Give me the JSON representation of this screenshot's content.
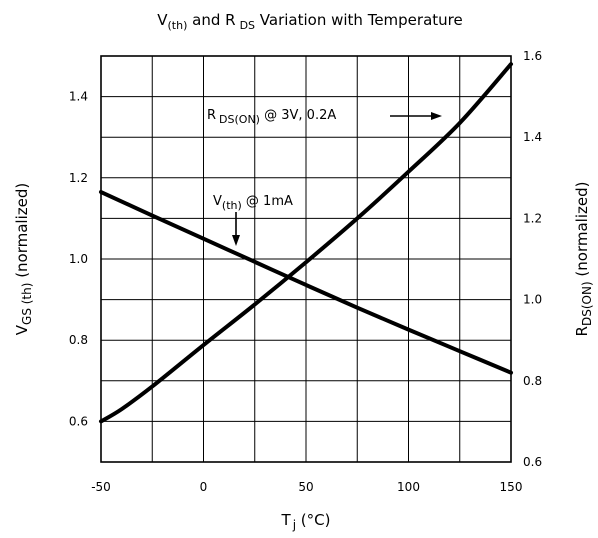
{
  "chart_data": {
    "type": "line",
    "title": {
      "pre": "V",
      "sub1": "(th)",
      "mid": " and R",
      "sub2": "DS",
      "post": "  Variation with Temperature"
    },
    "xlabel": {
      "main": "T",
      "sub": "j",
      "unit": " (°C)"
    },
    "ylabel_left": {
      "main": "V",
      "sub": "GS (th)",
      "post": " (normalized)"
    },
    "ylabel_right": {
      "main": "R",
      "sub": "DS(ON)",
      "post": " (normalized)"
    },
    "xlim": [
      -50,
      150
    ],
    "ylim_left": [
      0.5,
      1.5
    ],
    "ylim_right": [
      0.6,
      1.6
    ],
    "x_ticks": [
      -50,
      0,
      50,
      100,
      150
    ],
    "x_tick_labels": [
      "-50",
      "0",
      "50",
      "100",
      "150"
    ],
    "y_left_ticks": [
      0.6,
      0.8,
      1.0,
      1.2,
      1.4
    ],
    "y_left_tick_labels": [
      "0.6",
      "0.8",
      "1.0",
      "1.2",
      "1.4"
    ],
    "y_right_ticks": [
      0.6,
      0.8,
      1.0,
      1.2,
      1.4,
      1.6
    ],
    "y_right_tick_labels": [
      "0.6",
      "0.8",
      "1.0",
      "1.2",
      "1.4",
      "1.6"
    ],
    "grid": true,
    "series": [
      {
        "axis": "left",
        "x": [
          -50,
          -25,
          0,
          25,
          50,
          75,
          100,
          125,
          150
        ],
        "y": [
          1.165,
          1.107,
          1.05,
          0.993,
          0.936,
          0.88,
          0.826,
          0.773,
          0.72
        ]
      },
      {
        "axis": "right",
        "x": [
          -50,
          -40,
          -25,
          0,
          25,
          50,
          75,
          100,
          125,
          150
        ],
        "y": [
          0.7,
          0.73,
          0.786,
          0.888,
          0.988,
          1.092,
          1.2,
          1.315,
          1.435,
          1.58
        ]
      }
    ],
    "annotations": [
      {
        "main": "R",
        "sub": "DS(ON)",
        "post": "  @ 3V, 0.2A"
      },
      {
        "main": "V",
        "sub": "(th)",
        "post": " @ 1mA"
      }
    ]
  }
}
